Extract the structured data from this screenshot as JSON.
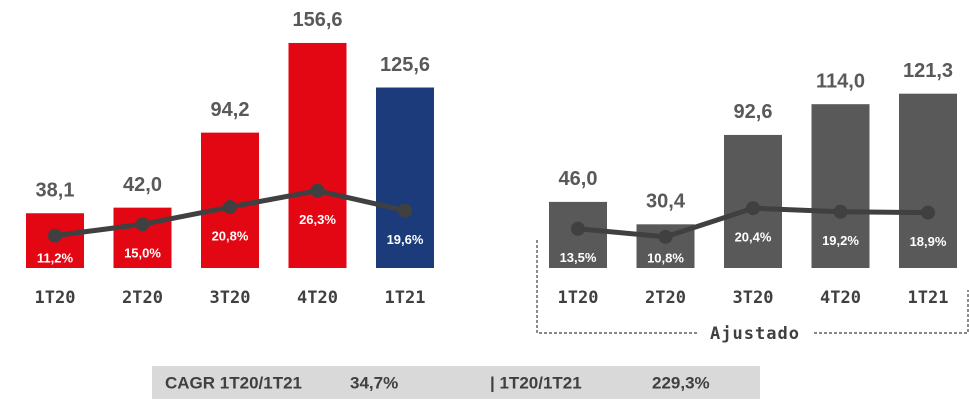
{
  "chart_data": [
    {
      "type": "bar",
      "categories": [
        "1T20",
        "2T20",
        "3T20",
        "4T20",
        "1T21"
      ],
      "bars": {
        "values": [
          38.1,
          42.0,
          94.2,
          156.6,
          125.6
        ],
        "value_labels": [
          "38,1",
          "42,0",
          "94,2",
          "156,6",
          "125,6"
        ],
        "colors": [
          "#e30613",
          "#e30613",
          "#e30613",
          "#e30613",
          "#1b3b7a"
        ]
      },
      "line": {
        "values": [
          11.2,
          15.0,
          20.8,
          26.3,
          19.6
        ],
        "value_labels": [
          "11,2%",
          "15,0%",
          "20,8%",
          "26,3%",
          "19,6%"
        ],
        "color": "#404040"
      }
    },
    {
      "type": "bar",
      "annotation": "Ajustado",
      "categories": [
        "1T20",
        "2T20",
        "3T20",
        "4T20",
        "1T21"
      ],
      "bars": {
        "values": [
          46.0,
          30.4,
          92.6,
          114.0,
          121.3
        ],
        "value_labels": [
          "46,0",
          "30,4",
          "92,6",
          "114,0",
          "121,3"
        ],
        "colors": [
          "#595959",
          "#595959",
          "#595959",
          "#595959",
          "#595959"
        ]
      },
      "line": {
        "values": [
          13.5,
          10.8,
          20.4,
          19.2,
          18.9
        ],
        "value_labels": [
          "13,5%",
          "10,8%",
          "20,4%",
          "19,2%",
          "18,9%"
        ],
        "color": "#404040"
      }
    }
  ],
  "footer": {
    "label1": "CAGR 1T20/1T21",
    "value1": "34,7%",
    "label2": "| 1T20/1T21",
    "value2": "229,3%"
  }
}
